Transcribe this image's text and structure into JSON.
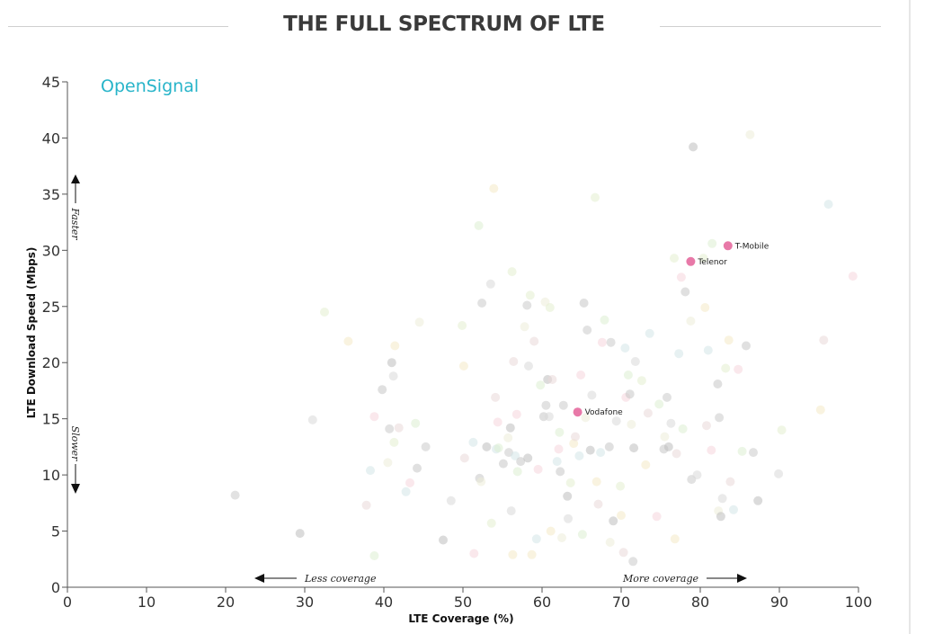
{
  "header": {
    "title": "THE FULL SPECTRUM OF LTE"
  },
  "brand": {
    "name": "OpenSignal",
    "color": "#27b4c9"
  },
  "annotations": {
    "faster": "Faster",
    "slower": "Slower",
    "less_coverage": "Less coverage",
    "more_coverage": "More coverage"
  },
  "chart_data": {
    "type": "scatter",
    "title": "THE FULL SPECTRUM OF LTE",
    "xlabel": "LTE Coverage (%)",
    "ylabel": "LTE Download Speed (Mbps)",
    "xlim": [
      0,
      100
    ],
    "ylim": [
      0,
      45
    ],
    "xticks": [
      "0",
      "10",
      "20",
      "30",
      "40",
      "50",
      "60",
      "70",
      "80",
      "90",
      "100"
    ],
    "yticks": [
      "0",
      "5",
      "10",
      "15",
      "20",
      "25",
      "30",
      "35",
      "40",
      "45"
    ],
    "grid": false,
    "highlight_color": "#e879a8",
    "highlighted": [
      {
        "name": "T-Mobile",
        "x": 83.5,
        "y": 30.4
      },
      {
        "name": "Telenor",
        "x": 78.8,
        "y": 29.0
      },
      {
        "name": "Vodafone",
        "x": 64.5,
        "y": 15.6
      }
    ],
    "background_points": [
      [
        21.2,
        8.2
      ],
      [
        29.4,
        4.8
      ],
      [
        31.0,
        14.9
      ],
      [
        32.5,
        24.5
      ],
      [
        35.5,
        21.9
      ],
      [
        37.8,
        7.3
      ],
      [
        38.3,
        10.4
      ],
      [
        38.8,
        15.2
      ],
      [
        38.8,
        2.8
      ],
      [
        39.8,
        17.6
      ],
      [
        40.5,
        11.1
      ],
      [
        40.7,
        14.1
      ],
      [
        41.0,
        20.0
      ],
      [
        41.2,
        18.8
      ],
      [
        41.3,
        12.9
      ],
      [
        41.4,
        21.5
      ],
      [
        41.9,
        14.2
      ],
      [
        42.8,
        8.5
      ],
      [
        43.3,
        9.3
      ],
      [
        44.0,
        14.6
      ],
      [
        44.2,
        10.6
      ],
      [
        44.5,
        23.6
      ],
      [
        45.3,
        12.5
      ],
      [
        47.5,
        4.2
      ],
      [
        48.5,
        7.7
      ],
      [
        49.9,
        23.3
      ],
      [
        50.1,
        19.7
      ],
      [
        50.2,
        11.5
      ],
      [
        51.3,
        12.9
      ],
      [
        51.4,
        3.0
      ],
      [
        52.0,
        32.2
      ],
      [
        52.1,
        9.7
      ],
      [
        52.3,
        9.4
      ],
      [
        52.4,
        25.3
      ],
      [
        53.0,
        12.5
      ],
      [
        53.5,
        27.0
      ],
      [
        53.6,
        5.7
      ],
      [
        53.9,
        35.5
      ],
      [
        54.1,
        16.9
      ],
      [
        54.2,
        12.3
      ],
      [
        54.4,
        14.7
      ],
      [
        54.5,
        12.4
      ],
      [
        55.1,
        11.0
      ],
      [
        55.7,
        13.3
      ],
      [
        55.8,
        12.0
      ],
      [
        56.0,
        14.2
      ],
      [
        56.1,
        6.8
      ],
      [
        56.2,
        28.1
      ],
      [
        56.3,
        2.9
      ],
      [
        56.4,
        20.1
      ],
      [
        56.6,
        11.7
      ],
      [
        56.8,
        15.4
      ],
      [
        56.9,
        10.3
      ],
      [
        57.3,
        11.2
      ],
      [
        57.8,
        23.2
      ],
      [
        58.1,
        25.1
      ],
      [
        58.2,
        11.5
      ],
      [
        58.3,
        19.7
      ],
      [
        58.5,
        26.0
      ],
      [
        58.7,
        2.9
      ],
      [
        59.0,
        21.9
      ],
      [
        59.3,
        4.3
      ],
      [
        59.5,
        10.5
      ],
      [
        59.8,
        18.0
      ],
      [
        60.2,
        15.2
      ],
      [
        60.4,
        25.4
      ],
      [
        60.5,
        16.2
      ],
      [
        60.7,
        18.5
      ],
      [
        60.9,
        15.2
      ],
      [
        61.0,
        24.9
      ],
      [
        61.1,
        5.0
      ],
      [
        61.3,
        18.5
      ],
      [
        61.9,
        11.2
      ],
      [
        62.1,
        12.3
      ],
      [
        62.2,
        13.8
      ],
      [
        62.3,
        10.3
      ],
      [
        62.5,
        4.4
      ],
      [
        62.7,
        16.2
      ],
      [
        63.2,
        8.1
      ],
      [
        63.3,
        6.1
      ],
      [
        63.6,
        9.3
      ],
      [
        64.0,
        12.8
      ],
      [
        64.2,
        13.4
      ],
      [
        64.7,
        11.7
      ],
      [
        64.9,
        18.9
      ],
      [
        65.1,
        4.7
      ],
      [
        65.3,
        25.3
      ],
      [
        65.5,
        15.1
      ],
      [
        65.7,
        22.9
      ],
      [
        66.1,
        12.2
      ],
      [
        66.3,
        17.1
      ],
      [
        66.7,
        34.7
      ],
      [
        66.9,
        9.4
      ],
      [
        67.1,
        7.4
      ],
      [
        67.4,
        12.0
      ],
      [
        67.6,
        21.8
      ],
      [
        67.9,
        23.8
      ],
      [
        68.5,
        12.5
      ],
      [
        68.6,
        4.0
      ],
      [
        68.7,
        21.8
      ],
      [
        69.0,
        5.9
      ],
      [
        69.4,
        14.8
      ],
      [
        69.9,
        9.0
      ],
      [
        70.0,
        6.4
      ],
      [
        70.3,
        3.1
      ],
      [
        70.5,
        21.3
      ],
      [
        70.6,
        16.9
      ],
      [
        70.9,
        18.9
      ],
      [
        71.1,
        17.2
      ],
      [
        71.3,
        14.5
      ],
      [
        71.5,
        2.3
      ],
      [
        71.6,
        12.4
      ],
      [
        71.8,
        20.1
      ],
      [
        72.6,
        18.4
      ],
      [
        73.1,
        10.9
      ],
      [
        73.4,
        15.5
      ],
      [
        73.6,
        22.6
      ],
      [
        74.5,
        6.3
      ],
      [
        74.8,
        16.3
      ],
      [
        75.4,
        12.3
      ],
      [
        75.5,
        13.4
      ],
      [
        75.8,
        16.9
      ],
      [
        76.0,
        12.5
      ],
      [
        76.3,
        14.6
      ],
      [
        76.7,
        29.3
      ],
      [
        76.8,
        4.3
      ],
      [
        77.0,
        11.9
      ],
      [
        77.3,
        20.8
      ],
      [
        77.6,
        27.6
      ],
      [
        77.8,
        14.1
      ],
      [
        78.1,
        26.3
      ],
      [
        78.8,
        23.7
      ],
      [
        78.9,
        9.6
      ],
      [
        79.1,
        39.2
      ],
      [
        79.6,
        10.0
      ],
      [
        80.4,
        29.3
      ],
      [
        80.6,
        24.9
      ],
      [
        80.8,
        14.4
      ],
      [
        81.0,
        21.1
      ],
      [
        81.4,
        12.2
      ],
      [
        81.5,
        30.6
      ],
      [
        82.2,
        18.1
      ],
      [
        82.3,
        6.8
      ],
      [
        82.4,
        15.1
      ],
      [
        82.6,
        6.3
      ],
      [
        82.8,
        7.9
      ],
      [
        83.2,
        19.5
      ],
      [
        83.6,
        22.0
      ],
      [
        83.8,
        9.4
      ],
      [
        84.2,
        6.9
      ],
      [
        84.8,
        19.4
      ],
      [
        85.3,
        12.1
      ],
      [
        85.8,
        21.5
      ],
      [
        86.3,
        40.3
      ],
      [
        86.7,
        12.0
      ],
      [
        87.3,
        7.7
      ],
      [
        89.9,
        10.1
      ],
      [
        90.3,
        14.0
      ],
      [
        95.2,
        15.8
      ],
      [
        95.6,
        22.0
      ],
      [
        96.2,
        34.1
      ],
      [
        99.3,
        27.7
      ]
    ],
    "background_colors": [
      "#cbcbcb",
      "#bdbdbd",
      "#d9d9d9",
      "#e3eed0",
      "#f4e9c6",
      "#ead8d8",
      "#d3e6e7",
      "#f6d5dc",
      "#dcefd2",
      "#c7c7c7",
      "#ececd9"
    ]
  }
}
